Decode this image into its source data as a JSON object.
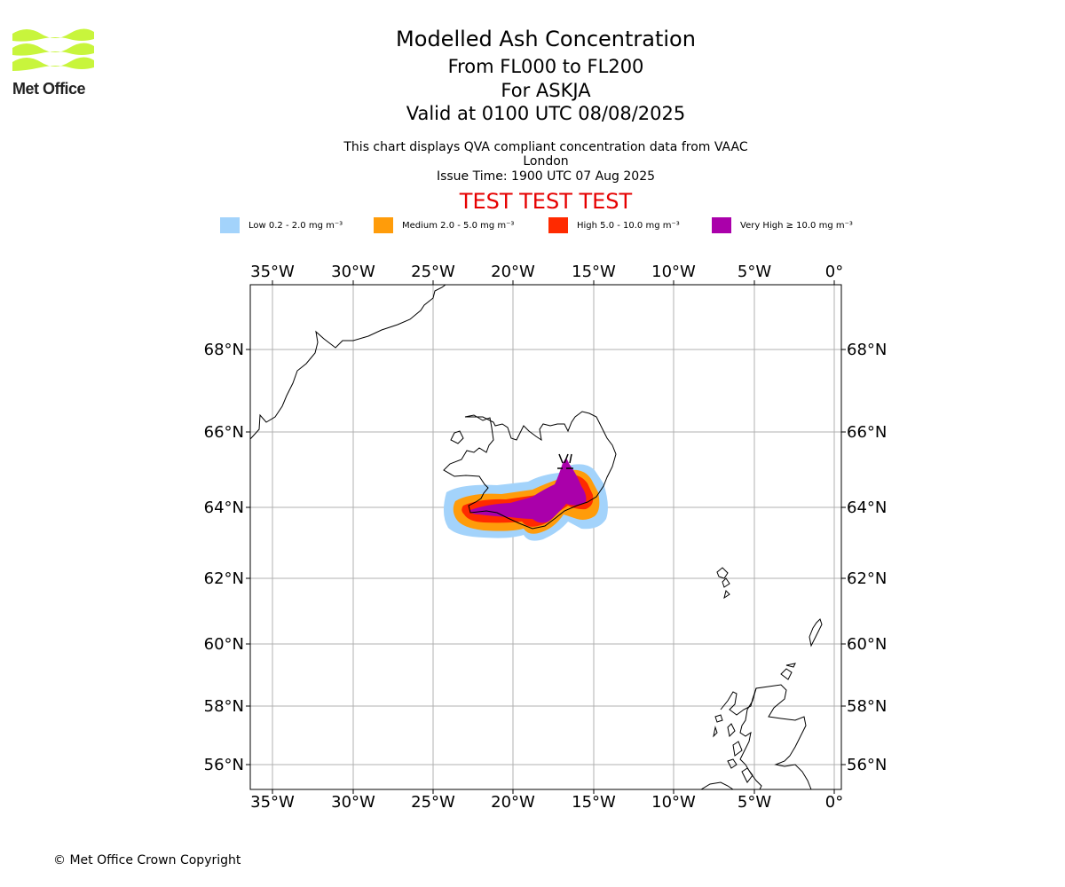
{
  "logo": {
    "text": "Met Office",
    "color": "#c8f53c"
  },
  "header": {
    "title": "Modelled Ash Concentration",
    "line2": "From FL000 to FL200",
    "line3": "For ASKJA",
    "line4": "Valid at 0100 UTC 08/08/2025",
    "subtitle": "This chart displays QVA compliant concentration data from VAAC London",
    "issue_time": "Issue Time: 1900 UTC 07 Aug 2025",
    "test_banner": "TEST TEST TEST"
  },
  "legend": [
    {
      "label": "Low 0.2 - 2.0 mg m⁻³",
      "color": "#a3d3fb"
    },
    {
      "label": "Medium 2.0 - 5.0 mg m⁻³",
      "color": "#ff9c0a"
    },
    {
      "label": "High 5.0 - 10.0 mg m⁻³",
      "color": "#ff2a00"
    },
    {
      "label": "Very High ≥ 10.0 mg m⁻³",
      "color": "#aa00aa"
    }
  ],
  "map": {
    "lon_ticks": [
      "35°W",
      "30°W",
      "25°W",
      "20°W",
      "15°W",
      "10°W",
      "5°W",
      "0°"
    ],
    "lat_ticks": [
      "68°N",
      "66°N",
      "64°N",
      "62°N",
      "60°N",
      "58°N",
      "56°N"
    ],
    "lon_range": [
      -36.4,
      0.5
    ],
    "lat_range": [
      55.4,
      69.7
    ],
    "volcano": "ASKJA",
    "grid": true
  },
  "footer": {
    "copyright": "© Met Office Crown Copyright"
  }
}
